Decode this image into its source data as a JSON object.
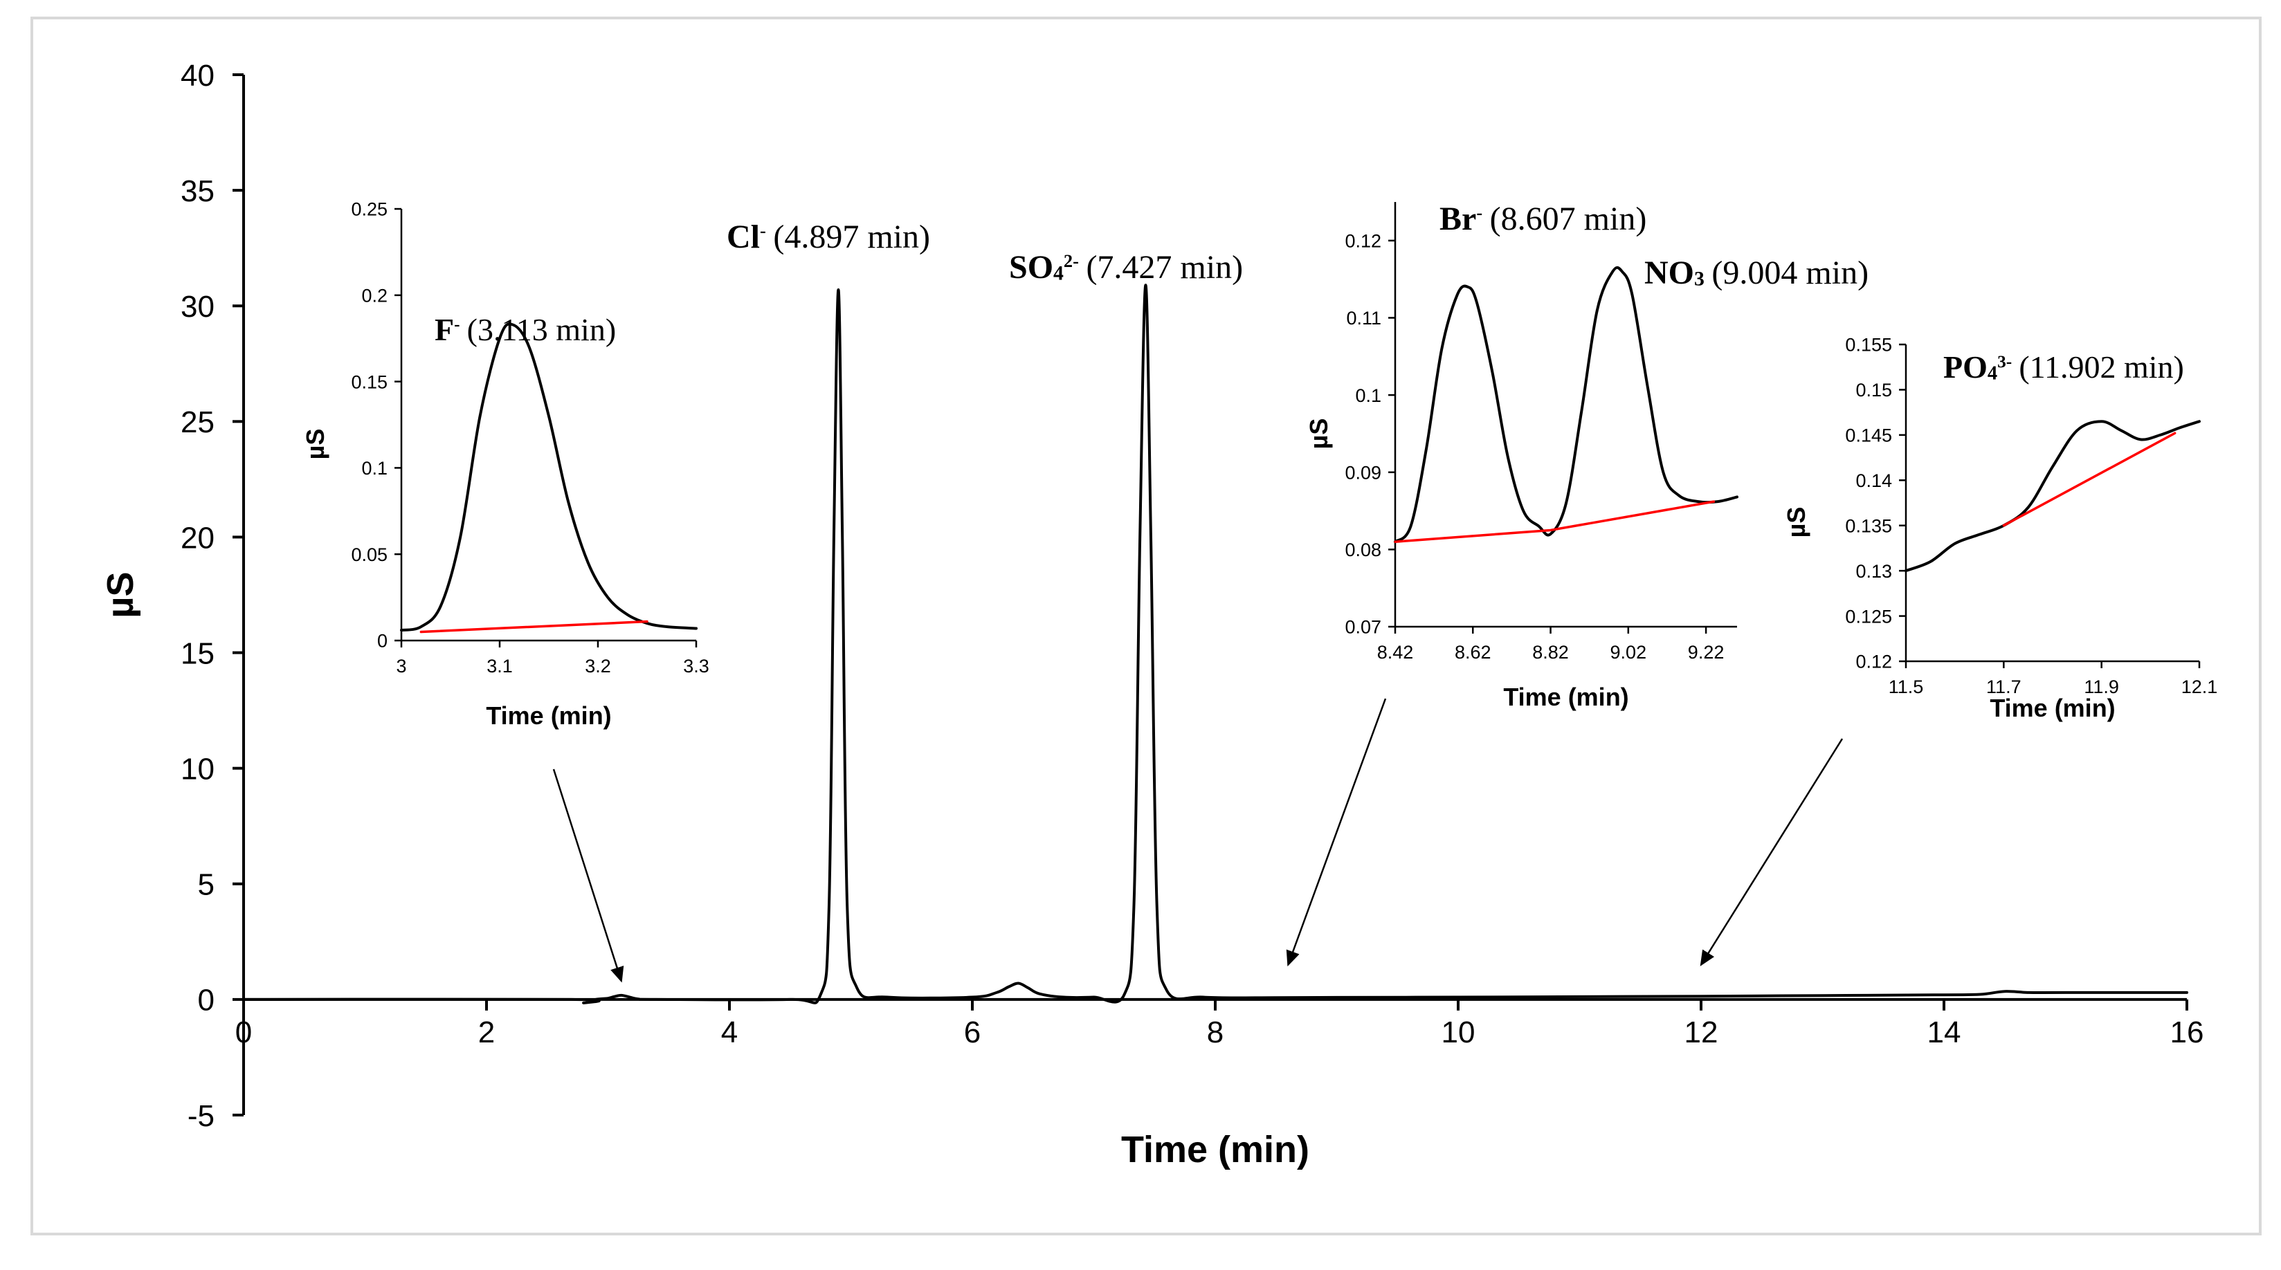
{
  "colors": {
    "trace": "#000000",
    "baseline": "#ff0000",
    "frame": "#d9d9d9"
  },
  "chart_data": [
    {
      "id": "main",
      "type": "line",
      "title": "",
      "xlabel": "Time (min)",
      "ylabel": "µS",
      "xlim": [
        0,
        16
      ],
      "ylim": [
        -5,
        40
      ],
      "xticks": [
        0,
        2,
        4,
        6,
        8,
        10,
        12,
        14,
        16
      ],
      "xtick_labels": [
        "0",
        "2",
        "4",
        "6",
        "8",
        "10",
        "12",
        "14",
        "16"
      ],
      "yticks": [
        -5,
        0,
        5,
        10,
        15,
        20,
        25,
        30,
        35,
        40
      ],
      "ytick_labels": [
        "-5",
        "0",
        "5",
        "10",
        "15",
        "20",
        "25",
        "30",
        "35",
        "40"
      ],
      "grid": false,
      "series": [
        {
          "name": "chromatogram",
          "x": [
            0,
            2.7,
            2.8,
            2.9,
            3.0,
            3.05,
            3.11,
            3.18,
            3.25,
            3.4,
            4.5,
            4.75,
            4.82,
            4.86,
            4.897,
            4.93,
            4.97,
            5.05,
            5.3,
            6.0,
            6.2,
            6.3,
            6.38,
            6.46,
            6.55,
            6.75,
            7.0,
            7.25,
            7.33,
            7.38,
            7.427,
            7.47,
            7.52,
            7.6,
            7.9,
            8.5,
            9.0,
            10.0,
            11.0,
            12.0,
            13.0,
            14.0,
            14.3,
            14.5,
            14.7,
            15.0,
            16.0
          ],
          "y": [
            0,
            0,
            -0.15,
            0,
            0.05,
            0.12,
            0.18,
            0.1,
            0.02,
            0,
            0,
            0.2,
            4,
            20,
            30.7,
            20,
            4,
            0.5,
            0.1,
            0.1,
            0.3,
            0.55,
            0.7,
            0.5,
            0.25,
            0.1,
            0.1,
            0.2,
            4,
            20,
            30.9,
            20,
            4,
            0.4,
            0.1,
            0.08,
            0.09,
            0.1,
            0.12,
            0.14,
            0.17,
            0.2,
            0.22,
            0.35,
            0.3,
            0.3,
            0.3
          ]
        }
      ],
      "annotations": [
        {
          "ion": "F",
          "charge": "-",
          "sub": "",
          "rt": "(3.113 min)"
        },
        {
          "ion": "Cl",
          "charge": "-",
          "sub": "",
          "rt": "(4.897 min)"
        },
        {
          "ion": "SO",
          "sub": "4",
          "charge": "2-",
          "rt": "(7.427 min)"
        },
        {
          "ion": "Br",
          "charge": "-",
          "sub": "",
          "rt": "(8.607 min)"
        },
        {
          "ion": "NO",
          "sub": "3",
          "charge": "",
          "rt": "(9.004 min)"
        },
        {
          "ion": "PO",
          "sub": "4",
          "charge": "3-",
          "rt": "(11.902 min)"
        }
      ],
      "arrows": [
        {
          "target_x": 3.11,
          "target_y": 0.8
        },
        {
          "target_x": 8.6,
          "target_y": 1.5
        },
        {
          "target_x": 12.0,
          "target_y": 1.5
        }
      ]
    },
    {
      "id": "inset-f",
      "type": "line",
      "xlabel": "Time (min)",
      "ylabel": "µS",
      "xlim": [
        3,
        3.3
      ],
      "ylim": [
        0,
        0.25
      ],
      "xticks": [
        3,
        3.1,
        3.2,
        3.3
      ],
      "xtick_labels": [
        "3",
        "3.1",
        "3.2",
        "3.3"
      ],
      "yticks": [
        0,
        0.05,
        0.1,
        0.15,
        0.2,
        0.25
      ],
      "ytick_labels": [
        "0",
        "0.05",
        "0.1",
        "0.15",
        "0.2",
        "0.25"
      ],
      "series": [
        {
          "name": "signal",
          "x": [
            3.0,
            3.02,
            3.04,
            3.06,
            3.08,
            3.1,
            3.113,
            3.13,
            3.15,
            3.17,
            3.19,
            3.21,
            3.23,
            3.25,
            3.27,
            3.3
          ],
          "y": [
            0.006,
            0.008,
            0.02,
            0.06,
            0.13,
            0.175,
            0.183,
            0.17,
            0.13,
            0.08,
            0.045,
            0.025,
            0.015,
            0.01,
            0.008,
            0.007
          ]
        },
        {
          "name": "baseline",
          "color": "#ff0000",
          "x": [
            3.02,
            3.25
          ],
          "y": [
            0.005,
            0.011
          ]
        }
      ]
    },
    {
      "id": "inset-br-no3",
      "type": "line",
      "xlabel": "Time (min)",
      "ylabel": "µS",
      "xlim": [
        8.42,
        9.3
      ],
      "ylim": [
        0.07,
        0.125
      ],
      "xticks": [
        8.42,
        8.62,
        8.82,
        9.02,
        9.22
      ],
      "xtick_labels": [
        "8.42",
        "8.62",
        "8.82",
        "9.02",
        "9.22"
      ],
      "yticks": [
        0.07,
        0.08,
        0.09,
        0.1,
        0.11,
        0.12
      ],
      "ytick_labels": [
        "0.07",
        "0.08",
        "0.09",
        "0.1",
        "0.11",
        "0.12"
      ],
      "series": [
        {
          "name": "signal",
          "x": [
            8.42,
            8.46,
            8.5,
            8.54,
            8.58,
            8.607,
            8.63,
            8.67,
            8.71,
            8.75,
            8.79,
            8.82,
            8.86,
            8.9,
            8.94,
            8.98,
            9.004,
            9.03,
            9.07,
            9.11,
            9.15,
            9.2,
            9.25,
            9.3
          ],
          "y": [
            0.081,
            0.083,
            0.093,
            0.106,
            0.113,
            0.114,
            0.112,
            0.103,
            0.092,
            0.085,
            0.083,
            0.082,
            0.086,
            0.098,
            0.111,
            0.116,
            0.116,
            0.113,
            0.101,
            0.09,
            0.087,
            0.0862,
            0.0862,
            0.0868
          ]
        },
        {
          "name": "baseline",
          "color": "#ff0000",
          "x": [
            8.42,
            8.82,
            9.24
          ],
          "y": [
            0.081,
            0.0825,
            0.0862
          ]
        }
      ]
    },
    {
      "id": "inset-po4",
      "type": "line",
      "xlabel": "Time (min)",
      "ylabel": "µS",
      "xlim": [
        11.5,
        12.1
      ],
      "ylim": [
        0.12,
        0.155
      ],
      "xticks": [
        11.5,
        11.7,
        11.9,
        12.1
      ],
      "xtick_labels": [
        "11.5",
        "11.7",
        "11.9",
        "12.1"
      ],
      "yticks": [
        0.12,
        0.125,
        0.13,
        0.135,
        0.14,
        0.145,
        0.15,
        0.155
      ],
      "ytick_labels": [
        "0.12",
        "0.125",
        "0.13",
        "0.135",
        "0.14",
        "0.145",
        "0.15",
        "0.155"
      ],
      "series": [
        {
          "name": "signal",
          "x": [
            11.5,
            11.55,
            11.6,
            11.65,
            11.7,
            11.75,
            11.8,
            11.85,
            11.9,
            11.94,
            11.98,
            12.02,
            12.06,
            12.1
          ],
          "y": [
            0.13,
            0.131,
            0.133,
            0.134,
            0.135,
            0.137,
            0.1415,
            0.1455,
            0.1465,
            0.1455,
            0.1445,
            0.145,
            0.1458,
            0.1465
          ]
        },
        {
          "name": "baseline",
          "color": "#ff0000",
          "x": [
            11.7,
            12.05
          ],
          "y": [
            0.135,
            0.1452
          ]
        }
      ]
    }
  ]
}
